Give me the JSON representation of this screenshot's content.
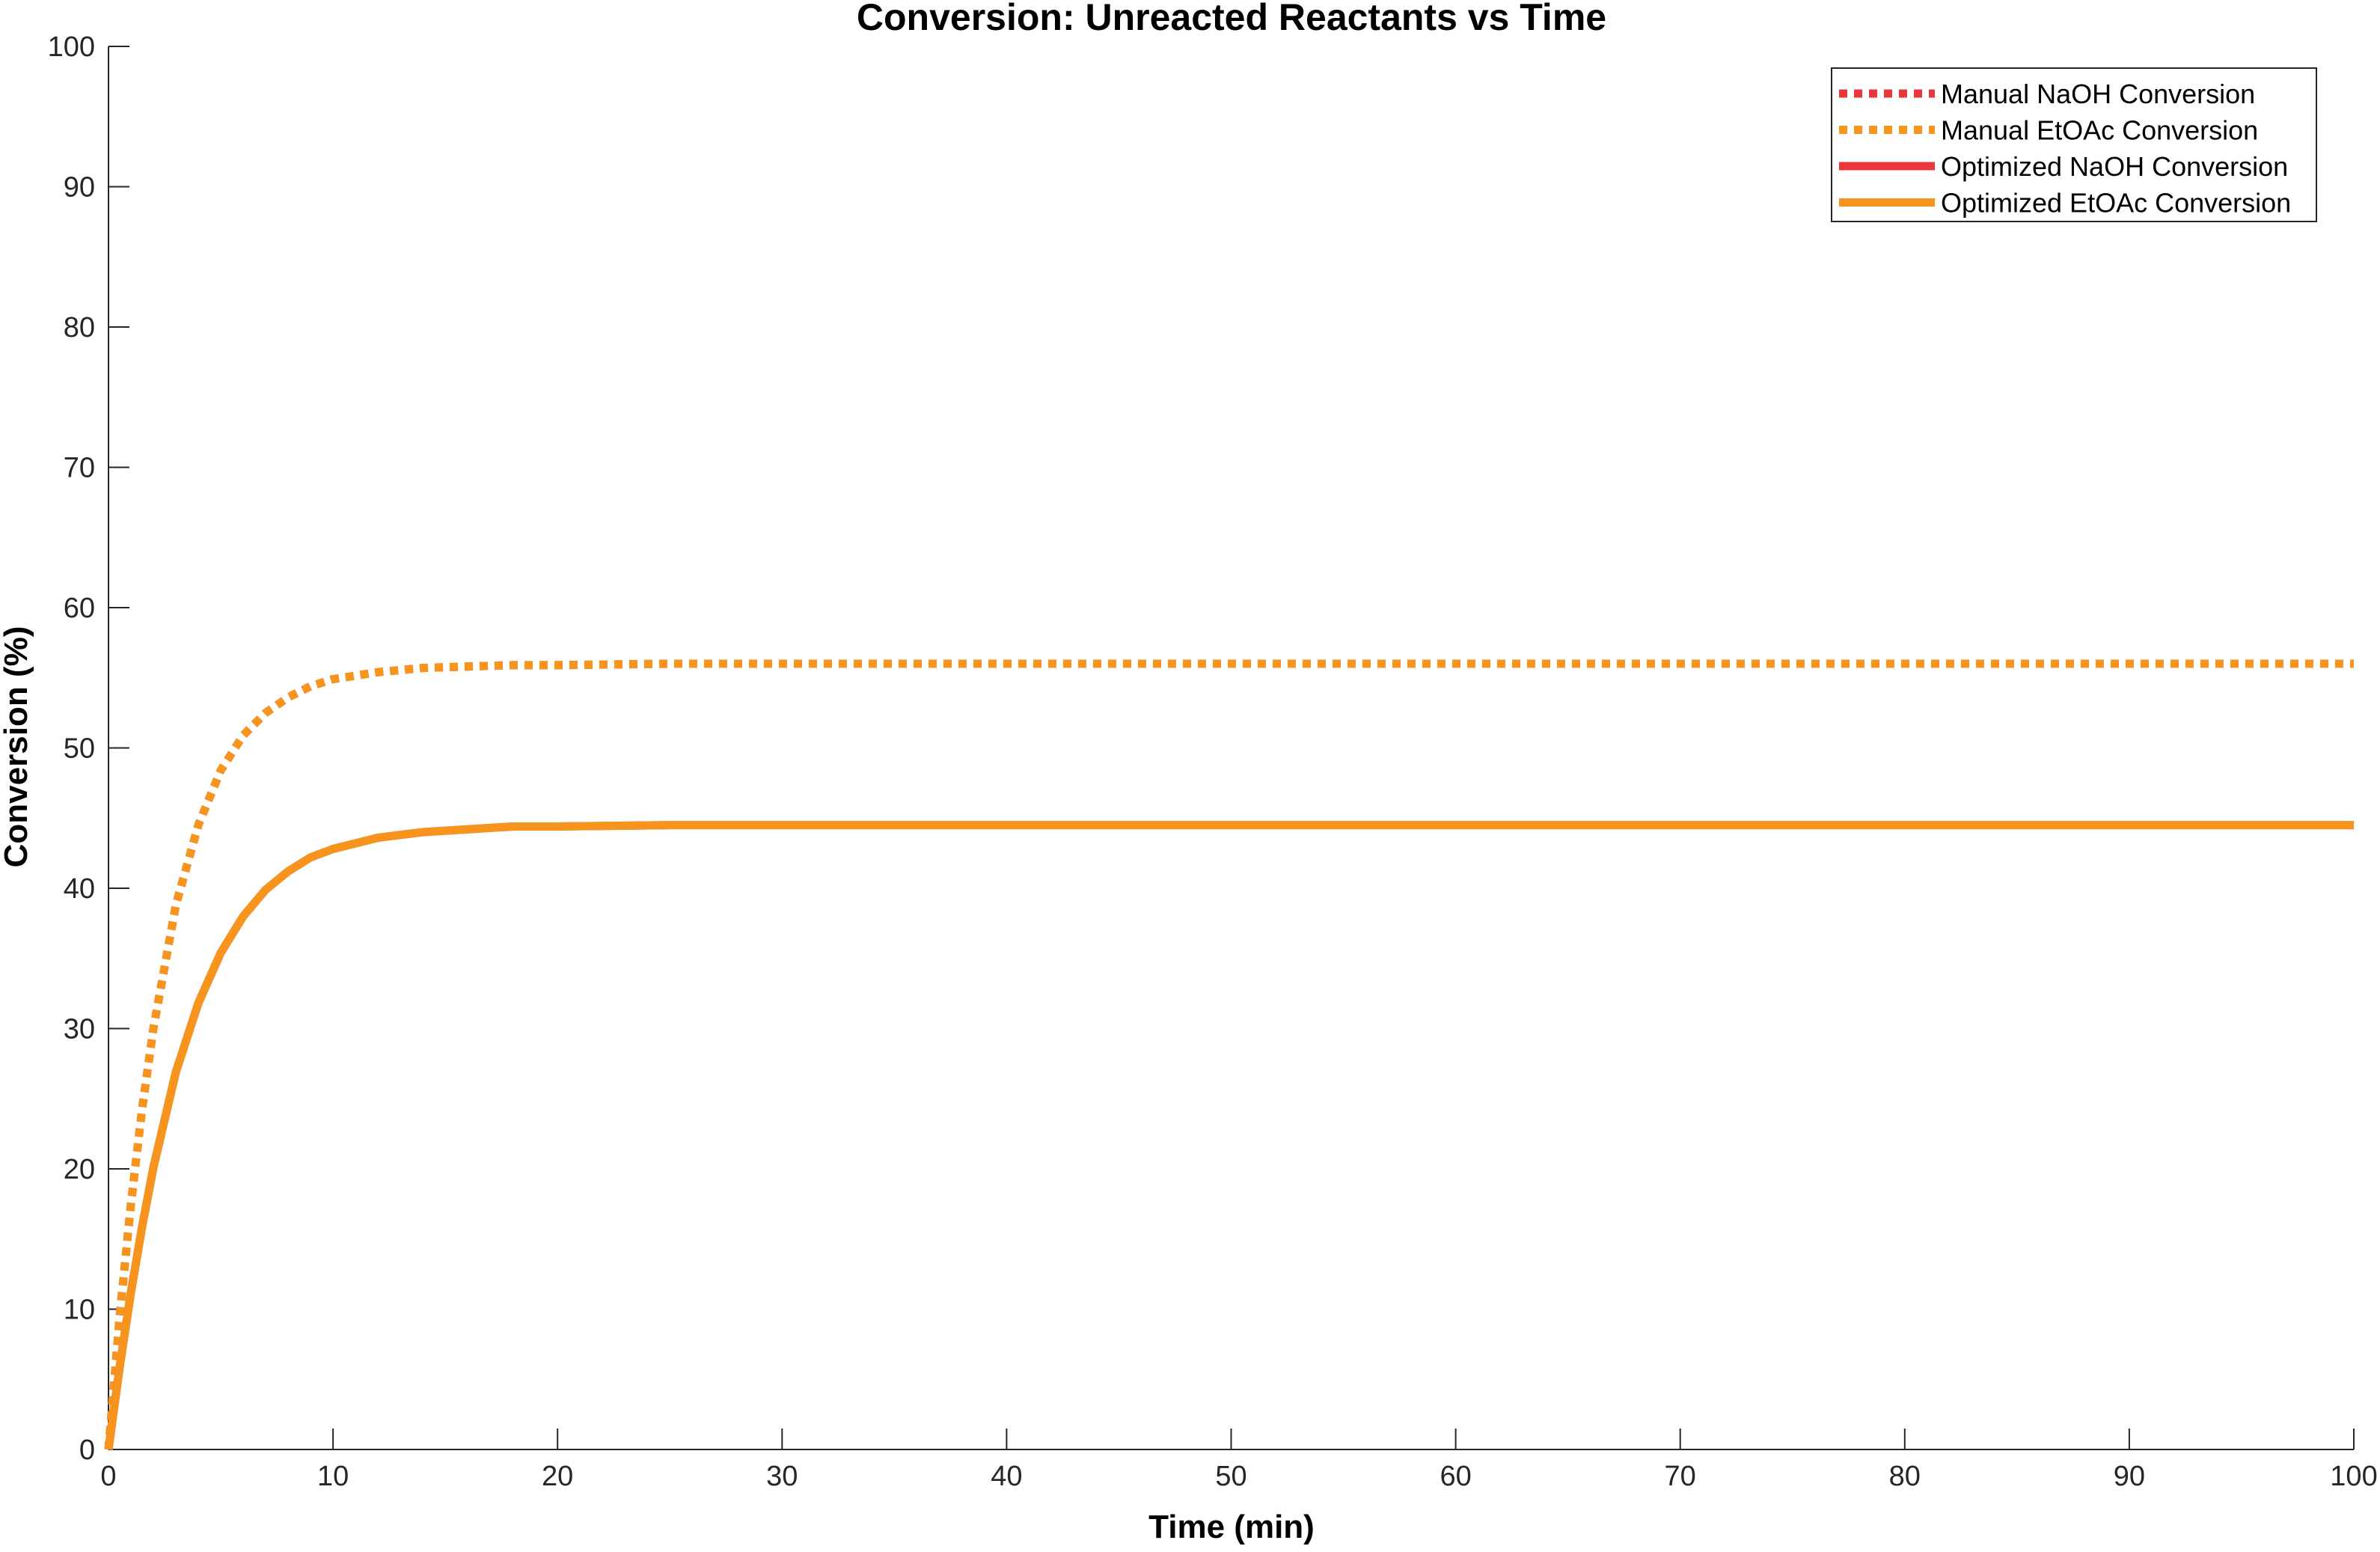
{
  "chart_data": {
    "type": "line",
    "title": "Conversion: Unreacted Reactants vs Time",
    "xlabel": "Time (min)",
    "ylabel": "Conversion (%)",
    "xlim": [
      0,
      100
    ],
    "ylim": [
      0,
      100
    ],
    "xticks": [
      "0",
      "10",
      "20",
      "30",
      "40",
      "50",
      "60",
      "70",
      "80",
      "90",
      "100"
    ],
    "yticks": [
      "0",
      "10",
      "20",
      "30",
      "40",
      "50",
      "60",
      "70",
      "80",
      "90",
      "100"
    ],
    "grid": false,
    "legend_position": "top-right",
    "x": [
      0,
      0.5,
      1,
      1.5,
      2,
      3,
      4,
      5,
      6,
      7,
      8,
      9,
      10,
      12,
      14,
      16,
      18,
      20,
      25,
      30,
      40,
      50,
      60,
      70,
      80,
      90,
      100
    ],
    "series": [
      {
        "name": "Manual NaOH Conversion",
        "color": "#e8383d",
        "style": "dotted",
        "values": [
          0,
          9.5,
          17.5,
          24.3,
          30.0,
          38.8,
          44.5,
          48.4,
          50.9,
          52.5,
          53.6,
          54.4,
          54.9,
          55.4,
          55.7,
          55.8,
          55.9,
          55.9,
          56.0,
          56.0,
          56.0,
          56.0,
          56.0,
          56.0,
          56.0,
          56.0,
          56.0
        ]
      },
      {
        "name": "Manual EtOAc Conversion",
        "color": "#f7941d",
        "style": "dotted",
        "values": [
          0,
          9.5,
          17.5,
          24.3,
          30.0,
          38.8,
          44.5,
          48.4,
          50.9,
          52.5,
          53.6,
          54.4,
          54.9,
          55.4,
          55.7,
          55.8,
          55.9,
          55.9,
          56.0,
          56.0,
          56.0,
          56.0,
          56.0,
          56.0,
          56.0,
          56.0,
          56.0
        ]
      },
      {
        "name": "Optimized NaOH Conversion",
        "color": "#e8383d",
        "style": "solid",
        "values": [
          0,
          5.9,
          11.2,
          15.9,
          20.1,
          26.9,
          31.8,
          35.4,
          38.0,
          39.9,
          41.2,
          42.2,
          42.8,
          43.6,
          44.0,
          44.2,
          44.4,
          44.4,
          44.5,
          44.5,
          44.5,
          44.5,
          44.5,
          44.5,
          44.5,
          44.5,
          44.5
        ]
      },
      {
        "name": "Optimized EtOAc Conversion",
        "color": "#f7941d",
        "style": "solid",
        "values": [
          0,
          5.9,
          11.2,
          15.9,
          20.1,
          26.9,
          31.8,
          35.4,
          38.0,
          39.9,
          41.2,
          42.2,
          42.8,
          43.6,
          44.0,
          44.2,
          44.4,
          44.4,
          44.5,
          44.5,
          44.5,
          44.5,
          44.5,
          44.5,
          44.5,
          44.5,
          44.5
        ]
      }
    ]
  }
}
